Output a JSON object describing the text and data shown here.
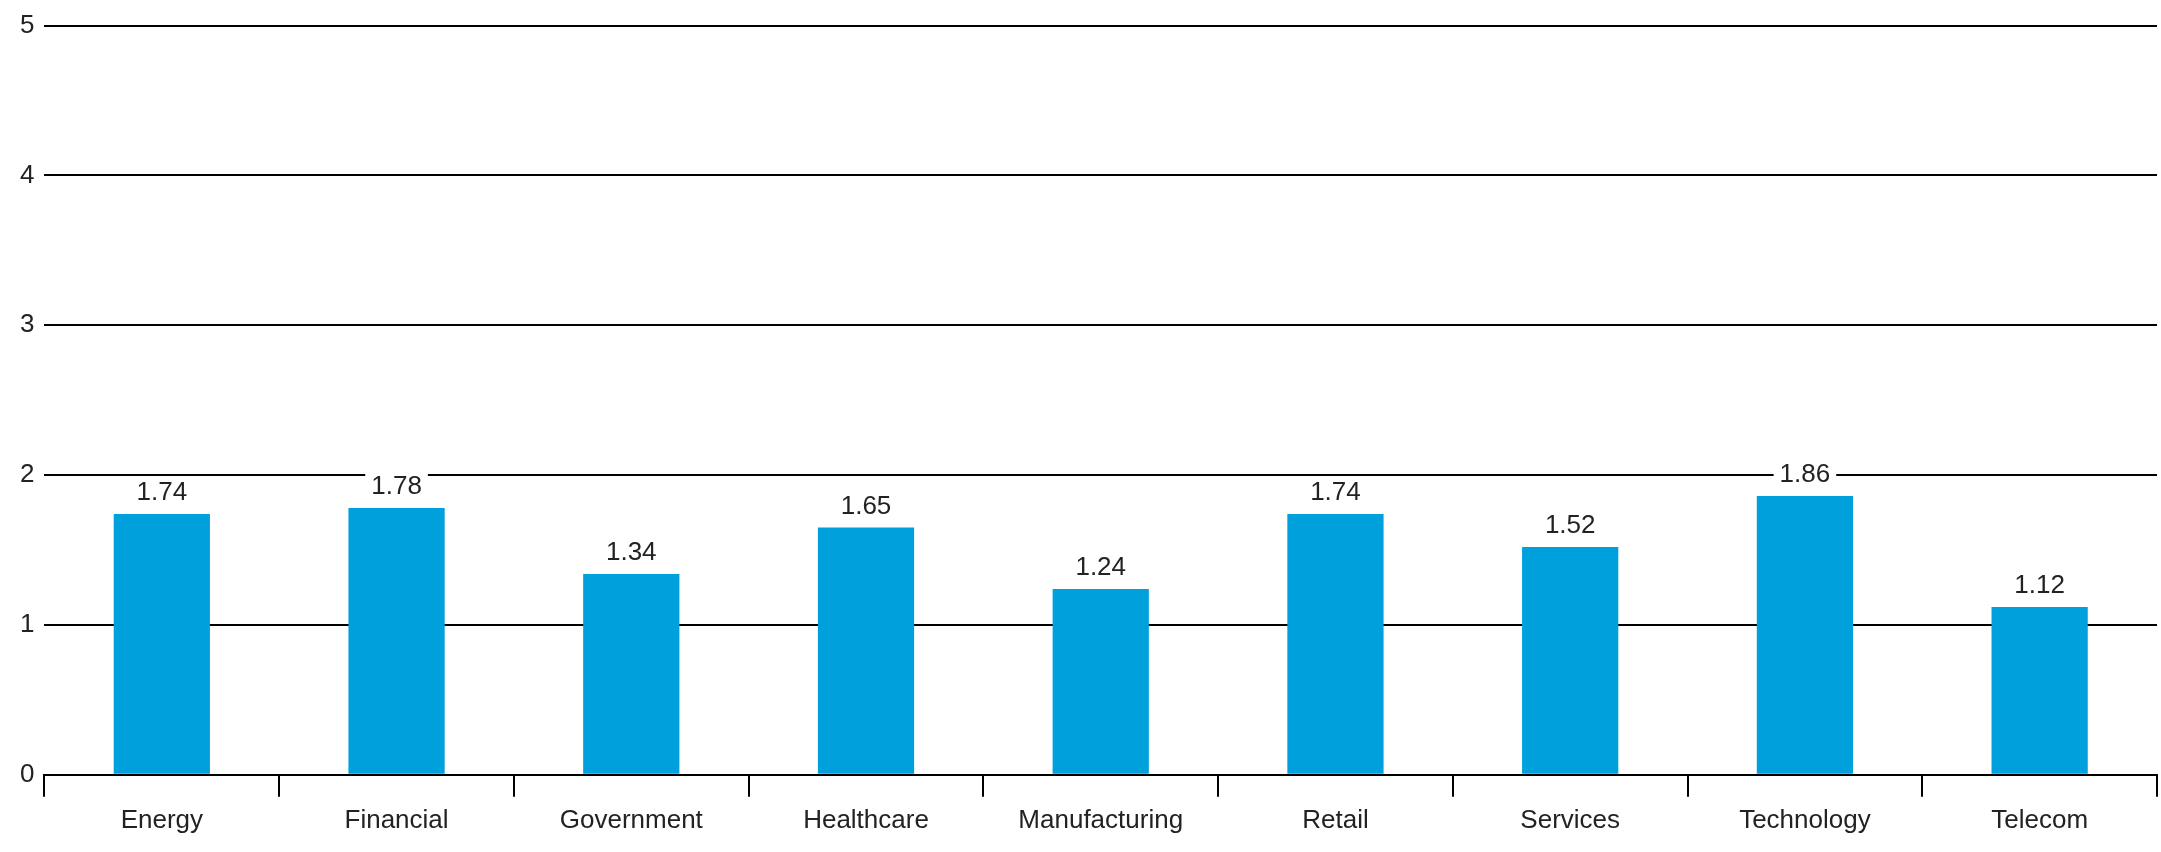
{
  "chart_data": {
    "type": "bar",
    "categories": [
      "Energy",
      "Financial",
      "Government",
      "Healthcare",
      "Manufacturing",
      "Retail",
      "Services",
      "Technology",
      "Telecom"
    ],
    "values": [
      1.74,
      1.78,
      1.34,
      1.65,
      1.24,
      1.74,
      1.52,
      1.86,
      1.12
    ],
    "color": "#00a0dc",
    "ylim": [
      0,
      5
    ],
    "yticks": [
      0,
      1,
      2,
      3,
      4,
      5
    ],
    "grid": "y",
    "data_labels": true,
    "legend": false
  }
}
